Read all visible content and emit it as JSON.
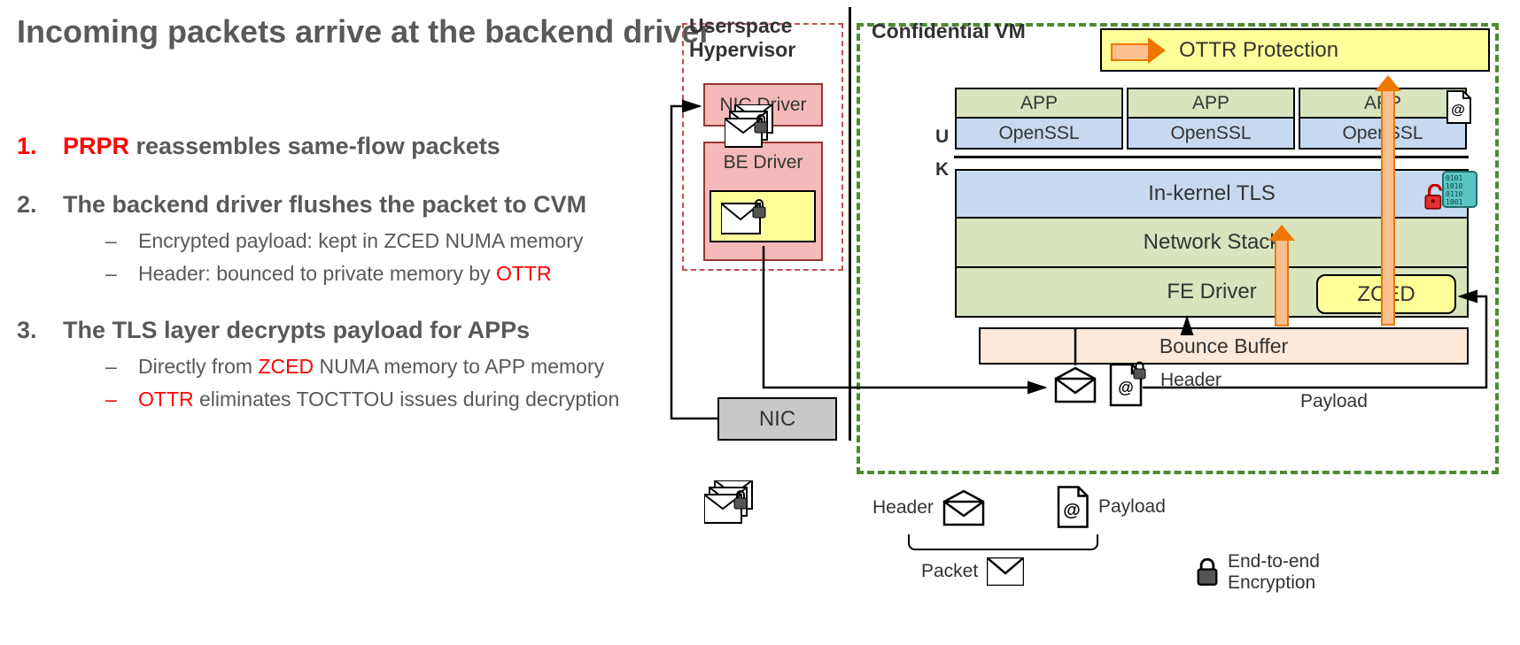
{
  "title": "Incoming packets arrive at the backend driver",
  "items": [
    {
      "num": "1.",
      "num_color": "#ff0000",
      "prefix": "PRPR",
      "prefix_color": "#ff0000",
      "rest": " reassembles same-flow packets",
      "subs": []
    },
    {
      "num": "2.",
      "num_color": "#595959",
      "prefix": "",
      "rest": "The backend driver flushes the packet to CVM",
      "subs": [
        {
          "dash": "–",
          "dash_color": "#595959",
          "text_parts": [
            {
              "t": "Encrypted payload: kept in ZCED NUMA memory",
              "c": "#595959"
            }
          ]
        },
        {
          "dash": "–",
          "dash_color": "#595959",
          "text_parts": [
            {
              "t": "Header: bounced to private memory by ",
              "c": "#595959"
            },
            {
              "t": "OTTR",
              "c": "#ff0000"
            }
          ]
        }
      ]
    },
    {
      "num": "3.",
      "num_color": "#595959",
      "prefix": "",
      "rest": "The TLS layer decrypts payload for APPs",
      "subs": [
        {
          "dash": "–",
          "dash_color": "#595959",
          "text_parts": [
            {
              "t": "Directly from ",
              "c": "#595959"
            },
            {
              "t": "ZCED",
              "c": "#ff0000"
            },
            {
              "t": " NUMA memory to APP memory",
              "c": "#595959"
            }
          ]
        },
        {
          "dash": "–",
          "dash_color": "#ff0000",
          "text_parts": [
            {
              "t": "OTTR",
              "c": "#ff0000"
            },
            {
              "t": " eliminates TOCTTOU issues during decryption",
              "c": "#595959"
            }
          ]
        }
      ]
    }
  ],
  "diagram": {
    "hypervisor_title1": "Userspace",
    "hypervisor_title2": "Hypervisor",
    "nic_driver": "NIC Driver",
    "be_driver": "BE Driver",
    "vm_title": "Confidential VM",
    "ottr": "OTTR Protection",
    "app": "APP",
    "openssl": "OpenSSL",
    "inkernel": "In-kernel TLS",
    "netstack": "Network Stack",
    "fedriver": "FE Driver",
    "zced": "ZCED",
    "bounce": "Bounce Buffer",
    "nic": "NIC",
    "u": "U",
    "k": "K",
    "header_lbl": "Header",
    "payload_lbl": "Payload",
    "packet_lbl": "Packet",
    "e2e1": "End-to-end",
    "e2e2": "Encryption",
    "colors": {
      "pink_fill": "#f4b9b9",
      "pink_border": "#953735",
      "yellow_fill": "#ffff99",
      "green_fill": "#d7e4bd",
      "blue_fill": "#c6d9f1",
      "peach_fill": "#fde9d9",
      "gray_fill": "#c8c8c8",
      "vm_border": "#4f8930",
      "orange_arrow": "#fac090",
      "orange_border": "#ee7700",
      "red": "#ff0000",
      "text": "#595959"
    }
  }
}
